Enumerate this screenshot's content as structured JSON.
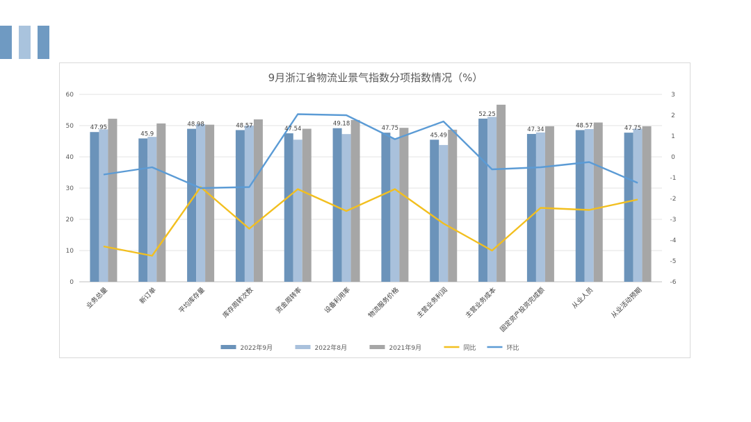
{
  "decor": {
    "bars": [
      "#6f9ac2",
      "#a9c3dd",
      "#6f9ac2"
    ]
  },
  "chart_data": {
    "type": "bar",
    "title": "9月浙江省物流业景气指数分项指数情况（%）",
    "categories": [
      "业务总量",
      "新订单",
      "平均库存量",
      "库存周转次数",
      "资金周转率",
      "设备利用率",
      "物流服务价格",
      "主营业务利润",
      "主营业务成本",
      "固定资产投资完成额",
      "从业人员",
      "从业活动预期"
    ],
    "series": [
      {
        "name": "2022年9月",
        "kind": "bar",
        "axis": "left",
        "color": "#6b93ba",
        "values": [
          47.95,
          45.9,
          48.98,
          48.57,
          47.54,
          49.18,
          47.75,
          45.49,
          52.25,
          47.34,
          48.57,
          47.75
        ],
        "labels": [
          "47.95",
          "45.9",
          "48.98",
          "48.57",
          "47.54",
          "49.18",
          "47.75",
          "45.49",
          "52.25",
          "47.34",
          "48.57",
          "47.75"
        ]
      },
      {
        "name": "2022年8月",
        "kind": "bar",
        "axis": "left",
        "color": "#a9c1dc",
        "values": [
          48.8,
          46.4,
          50.5,
          50.0,
          45.5,
          47.3,
          46.0,
          43.8,
          52.8,
          47.8,
          48.9,
          49.0
        ]
      },
      {
        "name": "2021年9月",
        "kind": "bar",
        "axis": "left",
        "color": "#a6a6a6",
        "values": [
          52.2,
          50.7,
          50.3,
          52.0,
          49.0,
          51.8,
          49.3,
          48.7,
          56.7,
          49.8,
          51.0,
          49.8
        ]
      },
      {
        "name": "同比",
        "kind": "line",
        "axis": "right",
        "color": "#f2bf1f",
        "values": [
          -4.3,
          -4.75,
          -1.45,
          -3.45,
          -1.55,
          -2.6,
          -1.55,
          -3.2,
          -4.5,
          -2.45,
          -2.55,
          -2.05
        ]
      },
      {
        "name": "环比",
        "kind": "line",
        "axis": "right",
        "color": "#5b9bd5",
        "values": [
          -0.85,
          -0.5,
          -1.5,
          -1.45,
          2.05,
          2.0,
          0.85,
          1.7,
          -0.6,
          -0.5,
          -0.25,
          -1.25
        ]
      }
    ],
    "ylim_left": [
      0,
      60
    ],
    "ylim_right": [
      -6,
      3
    ],
    "yticks_left": [
      "0",
      "10",
      "20",
      "30",
      "40",
      "50",
      "60"
    ],
    "yticks_right": [
      "-6",
      "-5",
      "-4",
      "-3",
      "-2",
      "-1",
      "0",
      "1",
      "2",
      "3"
    ],
    "grid": true,
    "legend_position": "bottom"
  }
}
